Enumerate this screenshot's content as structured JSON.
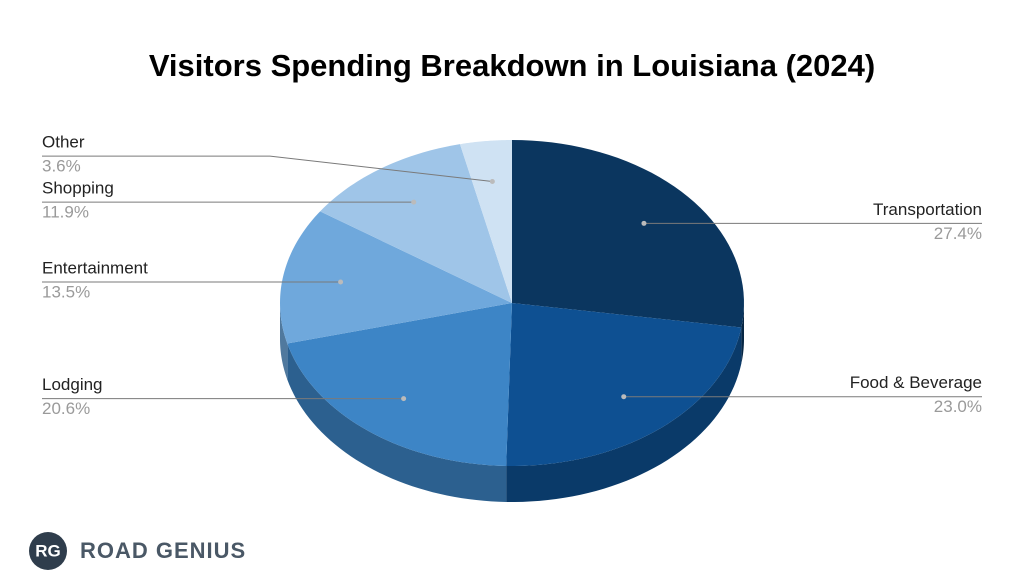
{
  "chart_data": {
    "type": "pie3d",
    "title": "Visitors Spending Breakdown in Louisiana (2024)",
    "categories": [
      "Transportation",
      "Food & Beverage",
      "Lodging",
      "Entertainment",
      "Shopping",
      "Other"
    ],
    "values": [
      27.4,
      23.0,
      20.6,
      13.5,
      11.9,
      3.6
    ],
    "value_labels": [
      "27.4%",
      "23.0%",
      "20.6%",
      "13.5%",
      "11.9%",
      "3.6%"
    ],
    "colors": [
      "#0b365f",
      "#0e5092",
      "#3d85c6",
      "#6fa8dc",
      "#9fc5e8",
      "#cfe2f3"
    ]
  },
  "brand_badge": "RG",
  "brand": "ROAD GENIUS"
}
